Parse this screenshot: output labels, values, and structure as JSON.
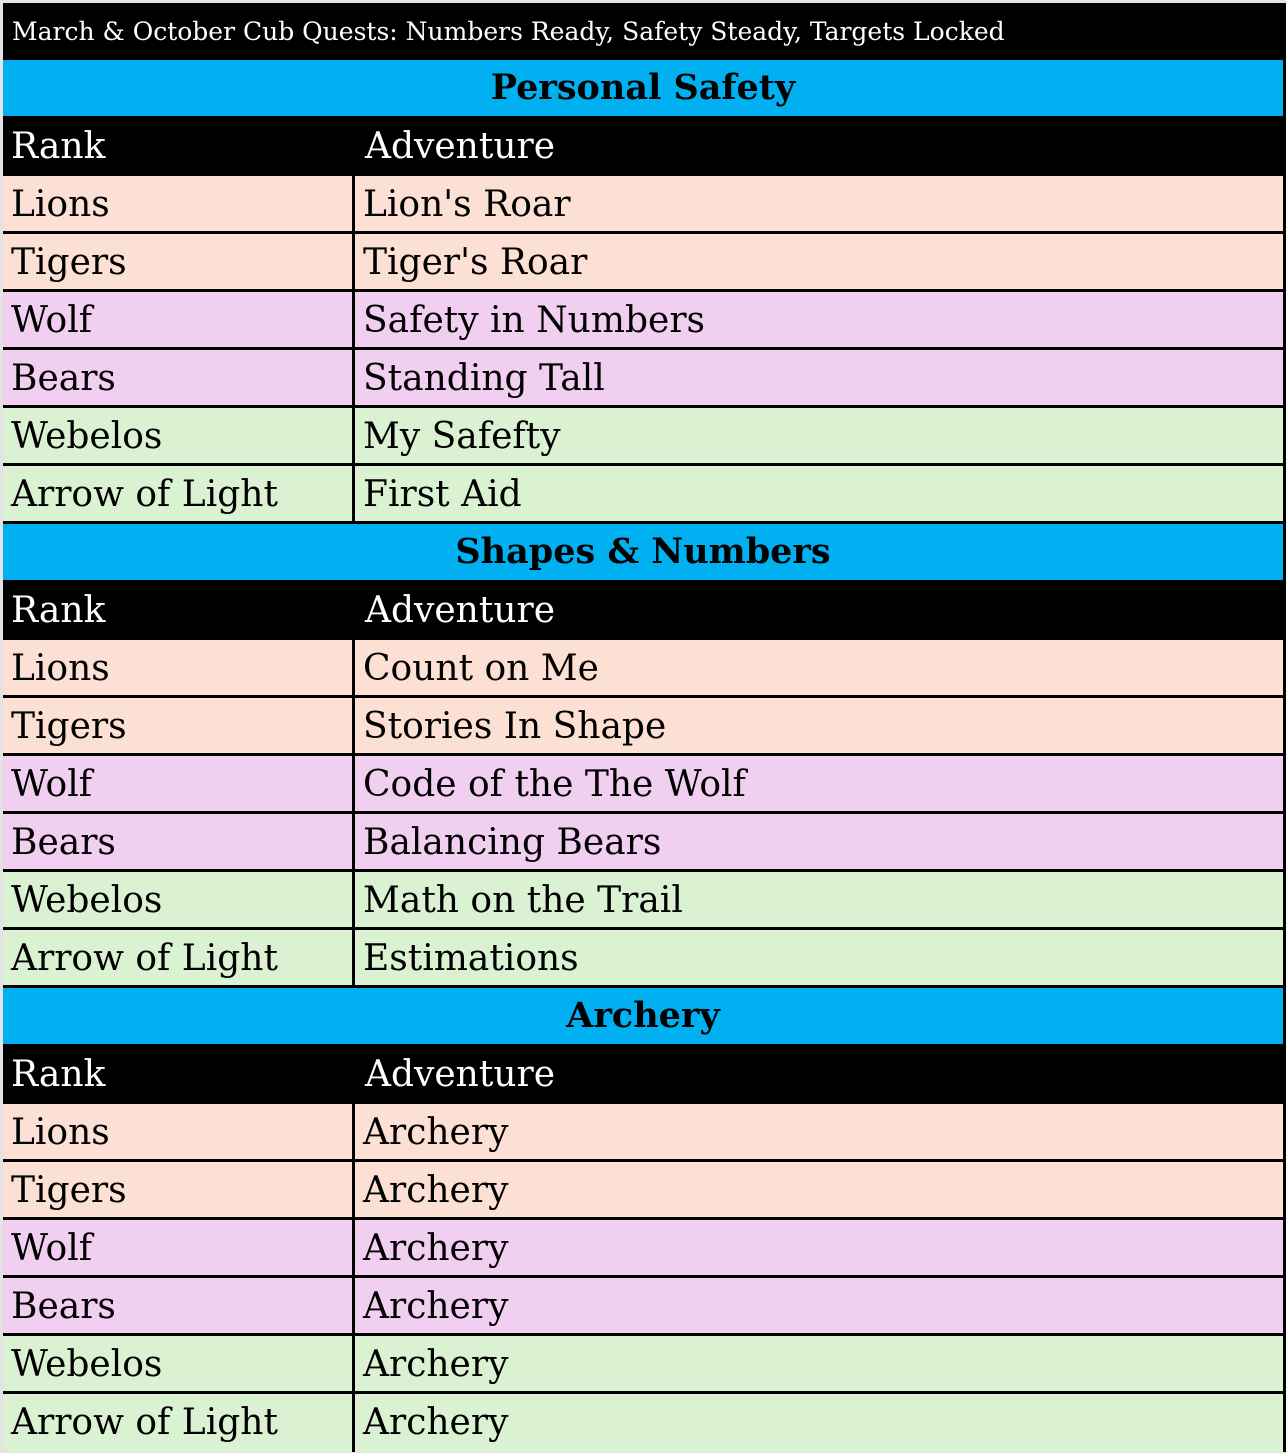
{
  "title": "March & October Cub Quests: Numbers Ready, Safety Steady, Targets Locked",
  "colors": {
    "section_header": "#00b0f0",
    "lions_tigers": "#fce0d4",
    "wolf_bears": "#f1cff0",
    "webelos_aol": "#dbf2d2"
  },
  "columns": {
    "rank": "Rank",
    "adventure": "Adventure"
  },
  "sections": [
    {
      "name": "Personal Safety",
      "rows": [
        {
          "rank": "Lions",
          "adventure": "Lion's Roar"
        },
        {
          "rank": "Tigers",
          "adventure": "Tiger's Roar"
        },
        {
          "rank": "Wolf",
          "adventure": "Safety in Numbers"
        },
        {
          "rank": "Bears",
          "adventure": "Standing Tall"
        },
        {
          "rank": "Webelos",
          "adventure": "My Safefty"
        },
        {
          "rank": "Arrow of Light",
          "adventure": "First Aid"
        }
      ]
    },
    {
      "name": "Shapes & Numbers",
      "rows": [
        {
          "rank": "Lions",
          "adventure": "Count on Me"
        },
        {
          "rank": "Tigers",
          "adventure": "Stories In Shape"
        },
        {
          "rank": "Wolf",
          "adventure": "Code of the The Wolf"
        },
        {
          "rank": "Bears",
          "adventure": "Balancing Bears"
        },
        {
          "rank": "Webelos",
          "adventure": "Math on the Trail"
        },
        {
          "rank": "Arrow of Light",
          "adventure": "Estimations"
        }
      ]
    },
    {
      "name": "Archery",
      "rows": [
        {
          "rank": "Lions",
          "adventure": "Archery"
        },
        {
          "rank": "Tigers",
          "adventure": "Archery"
        },
        {
          "rank": "Wolf",
          "adventure": "Archery"
        },
        {
          "rank": "Bears",
          "adventure": "Archery"
        },
        {
          "rank": "Webelos",
          "adventure": "Archery"
        },
        {
          "rank": "Arrow of Light",
          "adventure": "Archery"
        }
      ]
    }
  ]
}
